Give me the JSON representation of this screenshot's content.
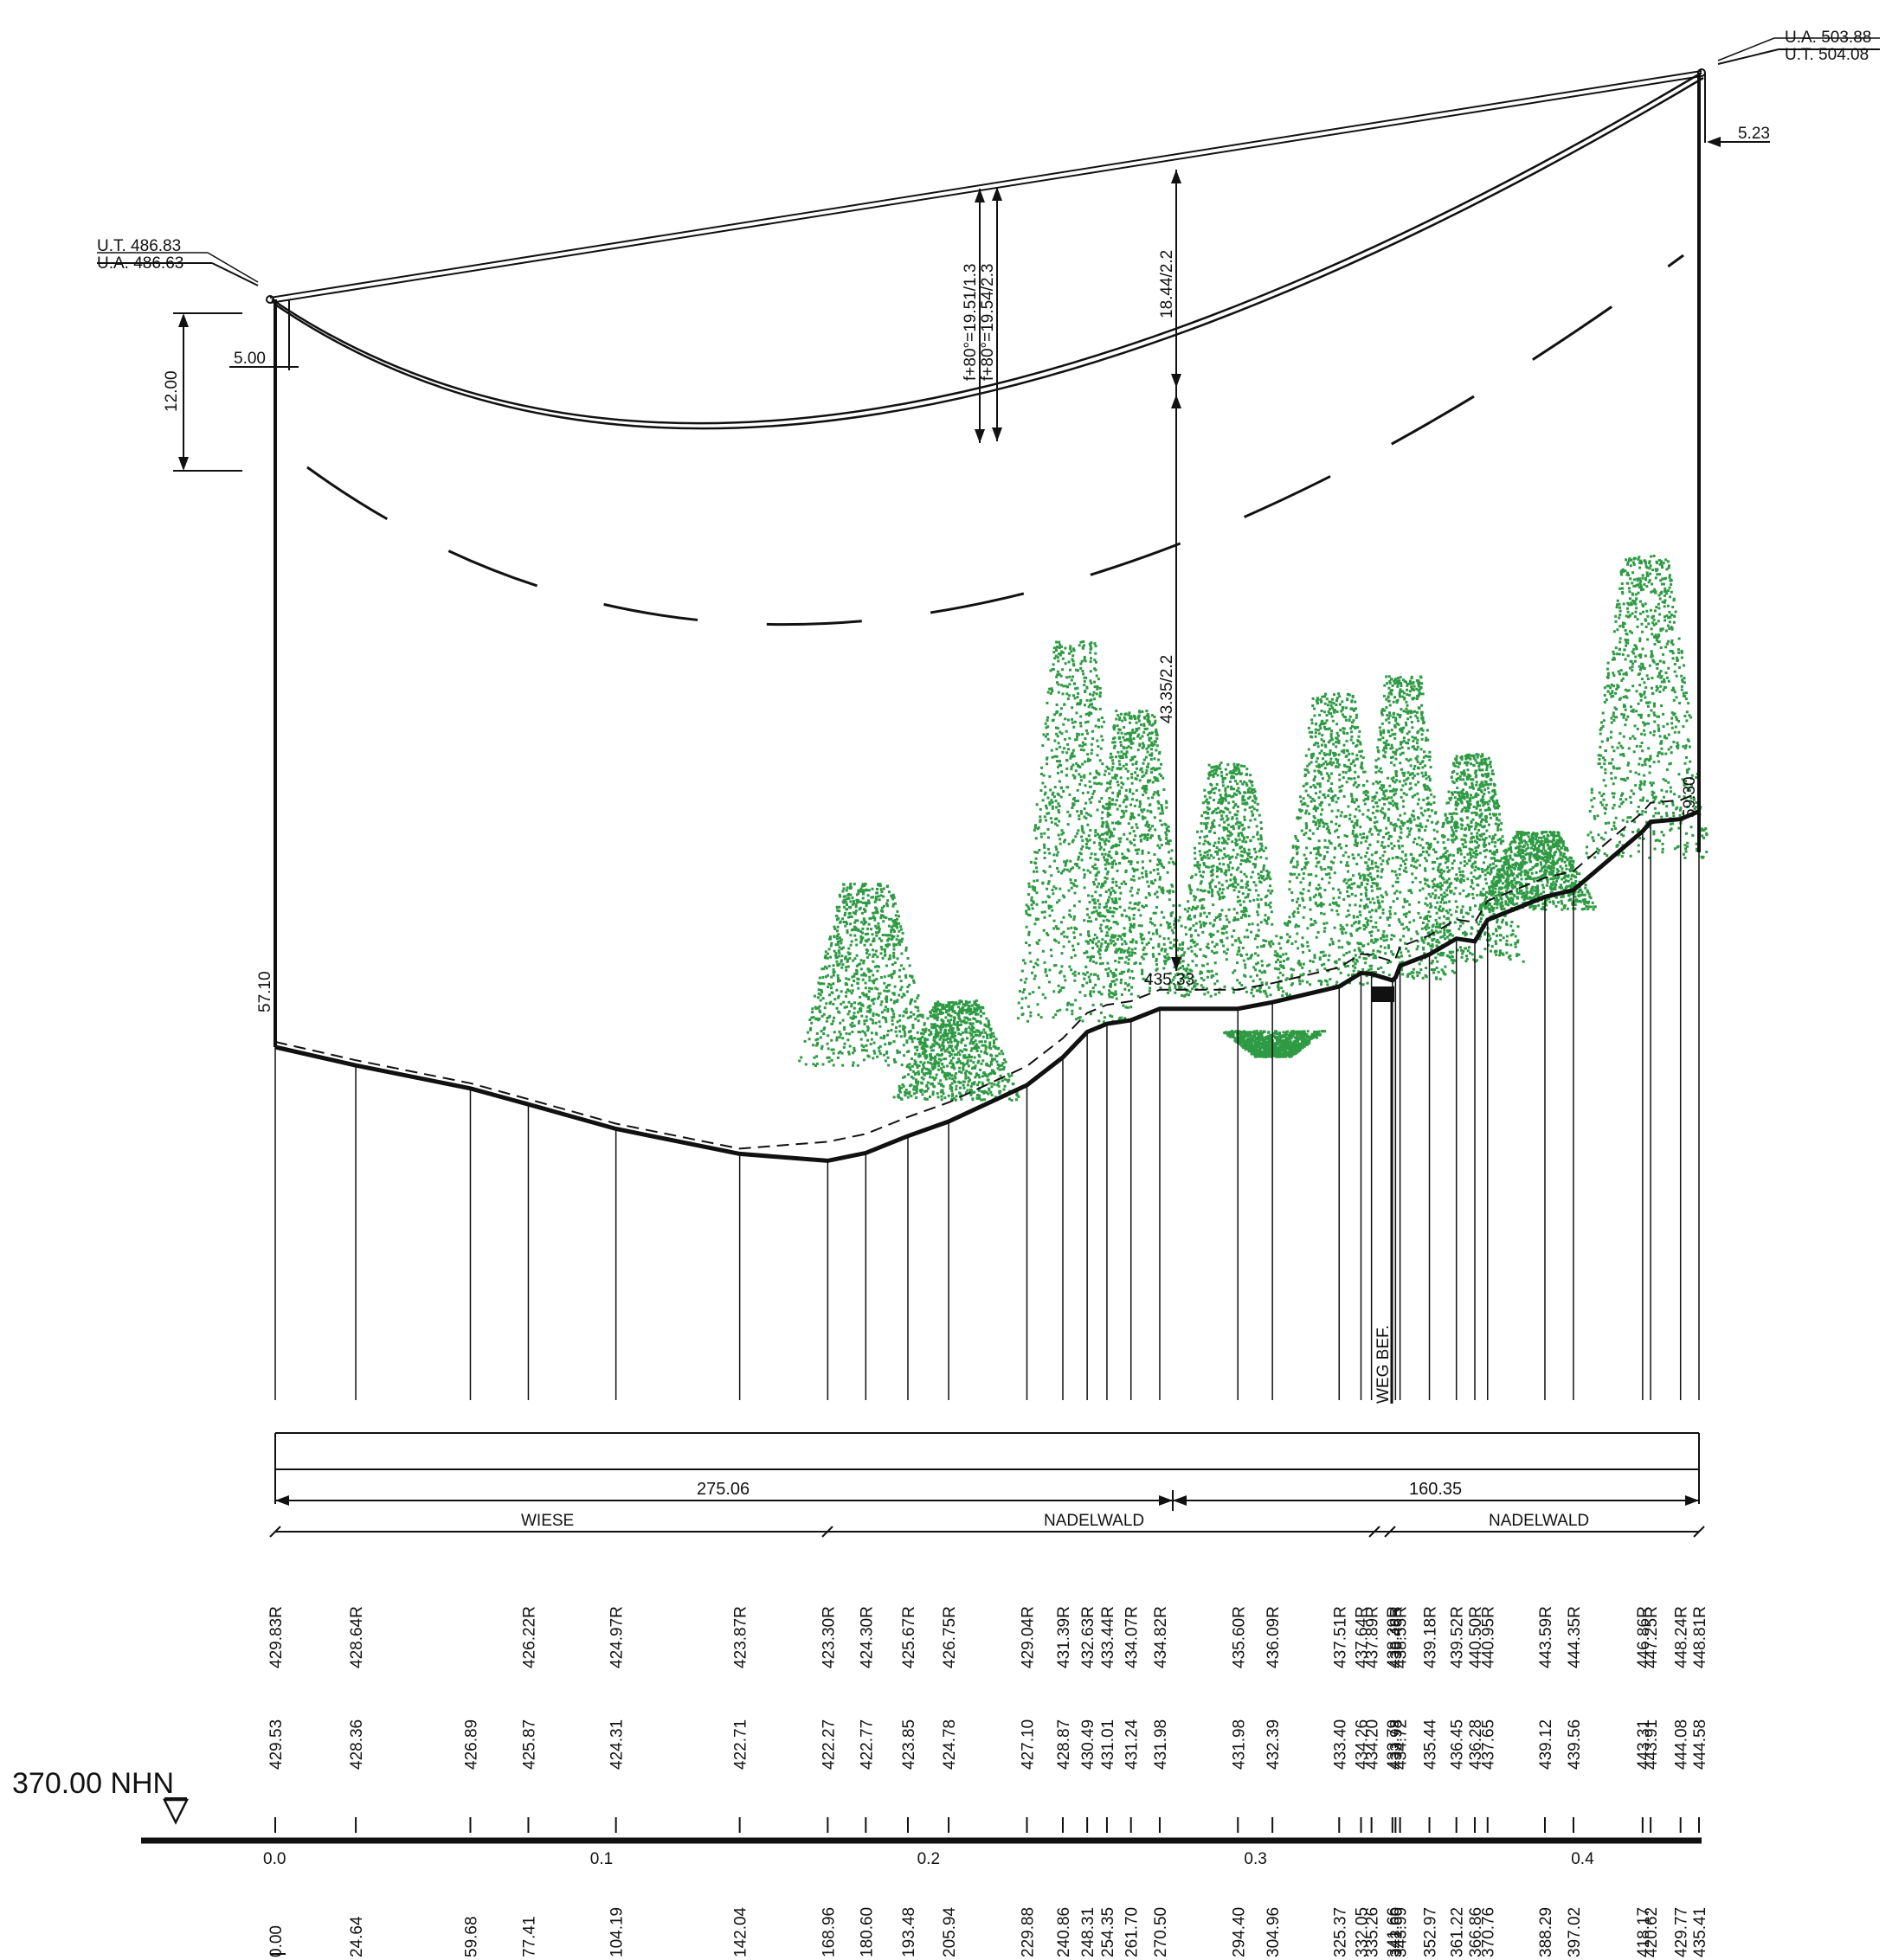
{
  "datum": "370.00 NHN",
  "towers": {
    "left": {
      "ut": "U.T. 486.83",
      "ua": "U.A. 486.63",
      "offset_h": "5.00",
      "offset_v": "12.00",
      "height": "57.10"
    },
    "right": {
      "ut": "U.T. 504.08",
      "ua": "U.A. 503.88",
      "offset_h": "5.23",
      "height": "59.30"
    }
  },
  "span_annotations": {
    "sag_1": "f+80°=19.51/1.3",
    "sag_2": "f+80°=19.54/2.3",
    "clearance_upper": "18.44/2.2",
    "clearance_lower": "43.35/2.2",
    "ground_point": "435.33"
  },
  "crossing_label": "WEG BEF.",
  "span_lengths": [
    "275.06",
    "160.35"
  ],
  "land_use": [
    "WIESE",
    "NADELWALD",
    "NADELWALD"
  ],
  "km_labels": [
    "0.0",
    "0.1",
    "0.2",
    "0.3",
    "0.4"
  ],
  "stations": [
    {
      "dist": "0.00",
      "ground": "429.53",
      "r": "429.83R"
    },
    {
      "dist": "24.64",
      "ground": "428.36",
      "r": "428.64R"
    },
    {
      "dist": "59.68",
      "ground": "426.89",
      "r": ""
    },
    {
      "dist": "77.41",
      "ground": "425.87",
      "r": "426.22R"
    },
    {
      "dist": "104.19",
      "ground": "424.31",
      "r": "424.97R"
    },
    {
      "dist": "142.04",
      "ground": "422.71",
      "r": "423.87R"
    },
    {
      "dist": "168.96",
      "ground": "422.27",
      "r": "423.30R"
    },
    {
      "dist": "180.60",
      "ground": "422.77",
      "r": "424.30R"
    },
    {
      "dist": "193.48",
      "ground": "423.85",
      "r": "425.67R"
    },
    {
      "dist": "205.94",
      "ground": "424.78",
      "r": "426.75R"
    },
    {
      "dist": "229.88",
      "ground": "427.10",
      "r": "429.04R"
    },
    {
      "dist": "240.86",
      "ground": "428.87",
      "r": "431.39R"
    },
    {
      "dist": "248.31",
      "ground": "430.49",
      "r": "432.63R"
    },
    {
      "dist": "254.35",
      "ground": "431.01",
      "r": "433.44R"
    },
    {
      "dist": "261.70",
      "ground": "431.24",
      "r": "434.07R"
    },
    {
      "dist": "270.50",
      "ground": "431.98",
      "r": "434.82R"
    },
    {
      "dist": "294.40",
      "ground": "431.98",
      "r": "435.60R"
    },
    {
      "dist": "304.96",
      "ground": "432.39",
      "r": "436.09R"
    },
    {
      "dist": "325.37",
      "ground": "433.40",
      "r": "437.51R"
    },
    {
      "dist": "332.05",
      "ground": "434.26",
      "r": "437.64R"
    },
    {
      "dist": "335.26",
      "ground": "434.20",
      "r": "437.89R"
    },
    {
      "dist": "341.66",
      "ground": "433.79",
      "r": "438.39R"
    },
    {
      "dist": "342.60",
      "ground": "433.98",
      "r": "438.46R"
    },
    {
      "dist": "343.99",
      "ground": "434.72",
      "r": "438.55R"
    },
    {
      "dist": "352.97",
      "ground": "435.44",
      "r": "439.18R"
    },
    {
      "dist": "361.22",
      "ground": "436.45",
      "r": "439.52R"
    },
    {
      "dist": "366.86",
      "ground": "436.28",
      "r": "440.50R"
    },
    {
      "dist": "370.76",
      "ground": "437.65",
      "r": "440.95R"
    },
    {
      "dist": "388.29",
      "ground": "439.12",
      "r": "443.59R"
    },
    {
      "dist": "397.02",
      "ground": "439.56",
      "r": "444.35R"
    },
    {
      "dist": "418.17",
      "ground": "443.31",
      "r": "446.86R"
    },
    {
      "dist": "420.62",
      "ground": "443.91",
      "r": "447.25R"
    },
    {
      "dist": "429.77",
      "ground": "444.08",
      "r": "448.24R"
    },
    {
      "dist": "435.41",
      "ground": "444.58",
      "r": "448.81R"
    }
  ],
  "colors": {
    "vegetation": "#2e9a44",
    "line": "#111111"
  }
}
